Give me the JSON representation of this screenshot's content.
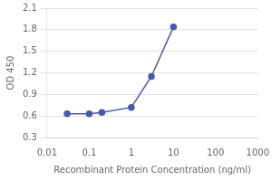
{
  "chart_data": {
    "type": "line",
    "x": [
      0.03,
      0.1,
      0.2,
      1.0,
      3.0,
      10.0
    ],
    "values": [
      0.63,
      0.63,
      0.65,
      0.72,
      1.15,
      1.84
    ],
    "color": "#4a5aaa",
    "marker": "circle",
    "log": "x",
    "xlim": [
      0.01,
      1000
    ],
    "xticks": [
      0.01,
      0.1,
      1,
      10,
      100,
      1000
    ],
    "ylim": [
      0.3,
      2.1
    ],
    "yticks": [
      0.3,
      0.6,
      0.9,
      1.2,
      1.5,
      1.8,
      2.1
    ],
    "xlabel": "Recombinant Protein Concentration (ng/ml)",
    "ylabel": "OD 450",
    "grid": true
  }
}
